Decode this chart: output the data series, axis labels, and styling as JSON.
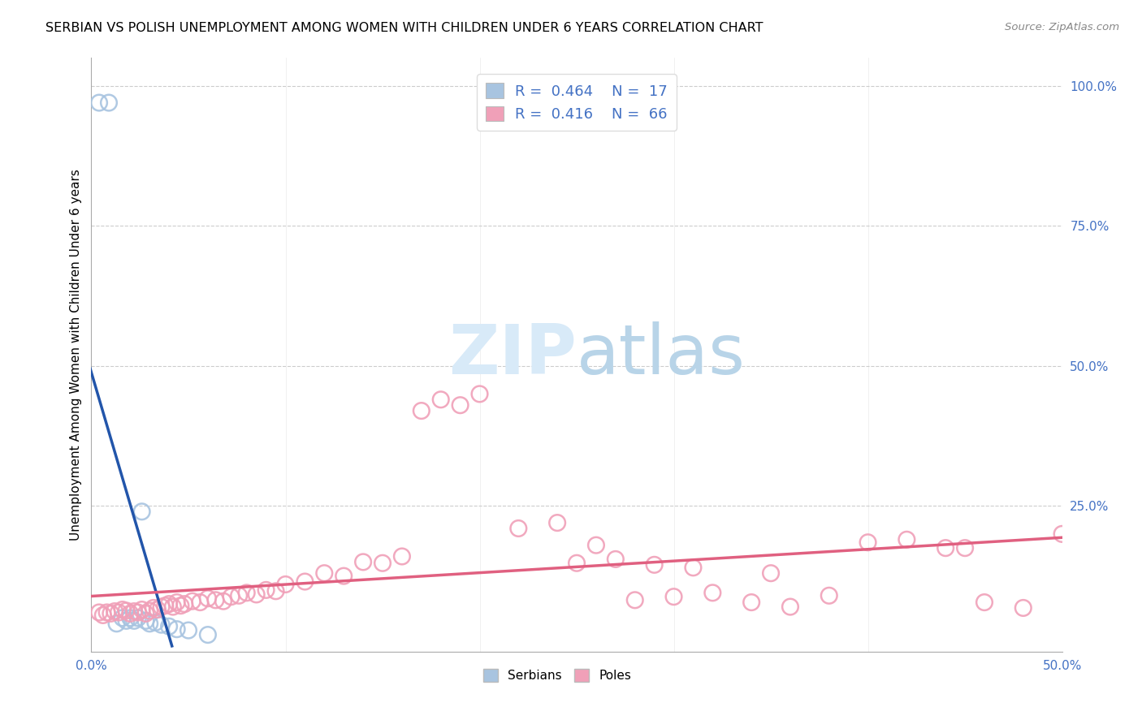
{
  "title": "SERBIAN VS POLISH UNEMPLOYMENT AMONG WOMEN WITH CHILDREN UNDER 6 YEARS CORRELATION CHART",
  "source": "Source: ZipAtlas.com",
  "ylabel": "Unemployment Among Women with Children Under 6 years",
  "xlim": [
    0.0,
    0.5
  ],
  "ylim": [
    -0.01,
    1.05
  ],
  "serbian_color": "#a8c4e0",
  "poles_color": "#f0a0b8",
  "trendline_serbian_solid_color": "#2255aa",
  "trendline_serbian_dash_color": "#88aadd",
  "trendline_poles_color": "#e06080",
  "background_color": "#ffffff",
  "watermark_color": "#d8eaf8",
  "serbian_x": [
    0.004,
    0.009,
    0.013,
    0.016,
    0.018,
    0.02,
    0.022,
    0.024,
    0.026,
    0.028,
    0.03,
    0.033,
    0.036,
    0.04,
    0.044,
    0.05,
    0.06
  ],
  "serbian_y": [
    0.97,
    0.97,
    0.04,
    0.05,
    0.045,
    0.05,
    0.045,
    0.05,
    0.24,
    0.045,
    0.04,
    0.042,
    0.038,
    0.035,
    0.03,
    0.028,
    0.02
  ],
  "poles_x": [
    0.004,
    0.006,
    0.008,
    0.01,
    0.012,
    0.014,
    0.016,
    0.018,
    0.02,
    0.022,
    0.024,
    0.026,
    0.028,
    0.03,
    0.032,
    0.034,
    0.036,
    0.038,
    0.04,
    0.042,
    0.044,
    0.046,
    0.048,
    0.052,
    0.056,
    0.06,
    0.064,
    0.068,
    0.072,
    0.076,
    0.08,
    0.085,
    0.09,
    0.095,
    0.1,
    0.11,
    0.12,
    0.13,
    0.14,
    0.15,
    0.16,
    0.17,
    0.18,
    0.19,
    0.2,
    0.22,
    0.24,
    0.26,
    0.28,
    0.3,
    0.32,
    0.34,
    0.36,
    0.38,
    0.4,
    0.42,
    0.44,
    0.46,
    0.48,
    0.5,
    0.25,
    0.27,
    0.29,
    0.31,
    0.35,
    0.45
  ],
  "poles_y": [
    0.06,
    0.055,
    0.06,
    0.058,
    0.062,
    0.06,
    0.065,
    0.063,
    0.058,
    0.062,
    0.06,
    0.065,
    0.058,
    0.063,
    0.068,
    0.065,
    0.07,
    0.072,
    0.075,
    0.07,
    0.078,
    0.072,
    0.075,
    0.08,
    0.078,
    0.085,
    0.082,
    0.08,
    0.088,
    0.09,
    0.095,
    0.092,
    0.1,
    0.098,
    0.11,
    0.115,
    0.13,
    0.125,
    0.15,
    0.148,
    0.16,
    0.42,
    0.44,
    0.43,
    0.45,
    0.21,
    0.22,
    0.18,
    0.082,
    0.088,
    0.095,
    0.078,
    0.07,
    0.09,
    0.185,
    0.19,
    0.175,
    0.078,
    0.068,
    0.2,
    0.148,
    0.155,
    0.145,
    0.14,
    0.13,
    0.175
  ]
}
